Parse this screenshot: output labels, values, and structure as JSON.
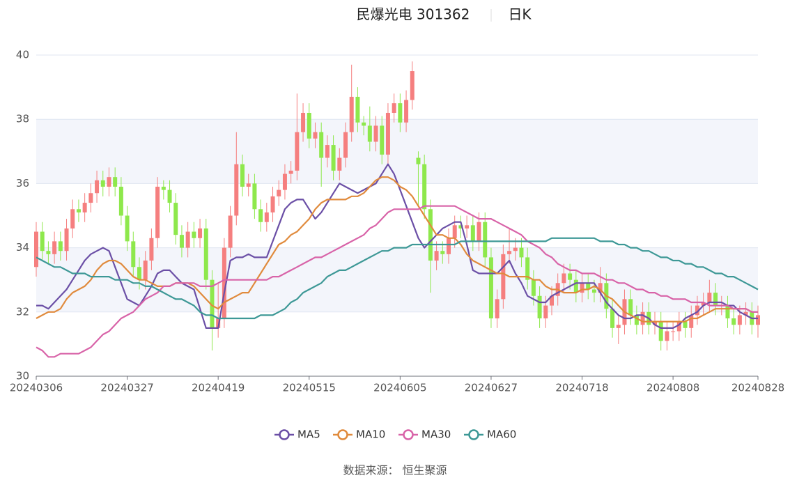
{
  "chart_data": {
    "type": "candlestick",
    "title": "民爆光电 301362",
    "subtitle": "日K",
    "source": "数据来源：  恒生聚源",
    "categories": [
      "20240306",
      null,
      null,
      null,
      null,
      null,
      null,
      null,
      null,
      null,
      null,
      null,
      null,
      null,
      null,
      "20240327",
      null,
      null,
      null,
      null,
      null,
      null,
      null,
      null,
      null,
      null,
      null,
      null,
      null,
      null,
      "20240419",
      null,
      null,
      null,
      null,
      null,
      null,
      null,
      null,
      null,
      null,
      null,
      null,
      null,
      null,
      "20240515",
      null,
      null,
      null,
      null,
      null,
      null,
      null,
      null,
      null,
      null,
      null,
      null,
      null,
      null,
      "20240605",
      null,
      null,
      null,
      null,
      null,
      null,
      null,
      null,
      null,
      null,
      null,
      null,
      null,
      null,
      "20240627",
      null,
      null,
      null,
      null,
      null,
      null,
      null,
      null,
      null,
      null,
      null,
      null,
      null,
      null,
      "20240718",
      null,
      null,
      null,
      null,
      null,
      null,
      null,
      null,
      null,
      null,
      null,
      null,
      null,
      null,
      "20240808",
      null,
      null,
      null,
      null,
      null,
      null,
      null,
      null,
      null,
      null,
      null,
      null,
      null,
      "20240828"
    ],
    "up_color": "#f57f7f",
    "down_color": "#8ee84c",
    "open": [
      33.4,
      34.5,
      33.9,
      33.8,
      34.2,
      33.9,
      34.6,
      35.2,
      35.1,
      35.4,
      35.7,
      36.1,
      35.9,
      36.2,
      35.9,
      35.0,
      34.2,
      33.4,
      33.0,
      33.6,
      34.3,
      35.9,
      35.8,
      35.4,
      34.4,
      34.0,
      34.5,
      34.3,
      34.6,
      33.0,
      31.5,
      31.8,
      34.0,
      35.0,
      36.6,
      35.9,
      36.0,
      35.2,
      34.8,
      35.1,
      35.6,
      35.8,
      36.3,
      36.4,
      37.6,
      38.2,
      37.4,
      37.6,
      36.8,
      37.2,
      36.4,
      36.8,
      37.6,
      38.7,
      37.9,
      37.8,
      37.3,
      37.8,
      36.9,
      38.2,
      38.5,
      37.9,
      38.6,
      36.8,
      36.6,
      35.2,
      33.6,
      33.9,
      33.8,
      34.3,
      34.7,
      34.6,
      34.7,
      34.2,
      34.8,
      33.7,
      31.8,
      32.4,
      33.8,
      33.9,
      34.0,
      33.7,
      33.0,
      32.5,
      31.8,
      32.2,
      32.5,
      32.9,
      33.2,
      33.0,
      32.6,
      32.9,
      32.7,
      32.6,
      32.9,
      32.1,
      31.5,
      31.6,
      32.4,
      31.9,
      31.6,
      32.0,
      31.6,
      31.7,
      31.1,
      31.4,
      31.4,
      31.7,
      31.5,
      31.9,
      32.2,
      32.3,
      32.6,
      32.2,
      32.2,
      31.8,
      31.6,
      31.9,
      32.0,
      31.6
    ],
    "close": [
      34.5,
      33.9,
      33.8,
      34.2,
      33.9,
      34.6,
      35.2,
      35.1,
      35.4,
      35.7,
      36.1,
      35.9,
      36.2,
      35.9,
      35.0,
      34.2,
      33.4,
      33.0,
      33.6,
      34.3,
      35.9,
      35.8,
      35.4,
      34.4,
      34.0,
      34.5,
      34.3,
      34.6,
      33.0,
      31.5,
      31.8,
      34.0,
      35.0,
      36.6,
      35.9,
      36.0,
      35.2,
      34.8,
      35.1,
      35.6,
      35.8,
      36.3,
      36.4,
      37.6,
      38.2,
      37.4,
      37.6,
      36.8,
      37.2,
      36.4,
      36.8,
      37.6,
      38.7,
      37.9,
      37.8,
      37.3,
      37.8,
      36.9,
      38.2,
      38.5,
      37.9,
      38.6,
      39.5,
      36.6,
      35.2,
      33.6,
      33.9,
      33.8,
      34.3,
      34.7,
      34.6,
      34.7,
      34.2,
      34.8,
      33.7,
      31.8,
      32.4,
      33.8,
      33.9,
      34.0,
      33.7,
      33.0,
      32.5,
      31.8,
      32.2,
      32.5,
      32.9,
      33.2,
      33.0,
      32.6,
      32.9,
      32.7,
      32.6,
      32.9,
      32.1,
      31.5,
      31.6,
      32.4,
      31.9,
      31.6,
      32.0,
      31.6,
      31.7,
      31.1,
      31.4,
      31.4,
      31.7,
      31.5,
      31.9,
      32.2,
      32.3,
      32.6,
      32.2,
      32.2,
      31.8,
      31.6,
      31.9,
      32.0,
      31.6,
      31.9
    ],
    "high": [
      34.8,
      34.8,
      34.2,
      34.5,
      34.5,
      34.9,
      35.5,
      35.5,
      35.7,
      36.0,
      36.4,
      36.4,
      36.5,
      36.5,
      36.2,
      35.3,
      34.5,
      33.7,
      33.9,
      34.6,
      36.2,
      36.1,
      36.1,
      35.7,
      34.7,
      34.8,
      34.8,
      34.9,
      34.9,
      33.3,
      32.9,
      34.3,
      35.3,
      37.6,
      36.9,
      36.3,
      36.3,
      35.5,
      35.4,
      35.9,
      36.1,
      36.6,
      36.7,
      38.8,
      38.5,
      38.5,
      37.9,
      37.9,
      37.5,
      37.5,
      37.1,
      37.9,
      39.7,
      39.0,
      38.1,
      38.4,
      38.1,
      38.1,
      38.5,
      38.8,
      38.8,
      38.9,
      39.8,
      37.0,
      36.9,
      35.5,
      34.2,
      34.2,
      34.6,
      35.0,
      35.0,
      35.0,
      35.0,
      35.1,
      35.1,
      34.0,
      32.7,
      34.1,
      34.6,
      34.3,
      34.3,
      34.0,
      33.3,
      32.8,
      32.5,
      32.8,
      33.2,
      33.5,
      33.5,
      33.3,
      33.2,
      33.2,
      33.0,
      33.4,
      33.2,
      32.4,
      31.9,
      32.7,
      32.7,
      32.2,
      32.3,
      32.3,
      32.0,
      32.0,
      31.7,
      31.7,
      32.0,
      32.0,
      32.2,
      32.5,
      32.6,
      33.0,
      32.9,
      32.5,
      32.5,
      32.1,
      32.2,
      32.3,
      32.3,
      32.2
    ],
    "low": [
      33.1,
      33.6,
      33.5,
      33.5,
      33.6,
      33.6,
      34.3,
      34.8,
      34.8,
      35.1,
      35.4,
      35.6,
      35.6,
      35.6,
      34.7,
      33.9,
      33.1,
      32.7,
      32.7,
      33.3,
      34.0,
      35.5,
      35.1,
      34.1,
      33.7,
      33.7,
      34.0,
      34.0,
      32.7,
      30.8,
      31.2,
      31.5,
      33.7,
      34.7,
      35.6,
      35.6,
      34.9,
      34.5,
      34.5,
      34.8,
      35.3,
      35.5,
      36.0,
      36.1,
      37.3,
      37.1,
      37.1,
      35.9,
      36.5,
      36.1,
      36.1,
      36.5,
      37.3,
      37.6,
      37.5,
      37.0,
      37.0,
      36.6,
      36.6,
      37.9,
      37.6,
      37.6,
      38.3,
      35.3,
      34.9,
      32.6,
      33.3,
      33.5,
      33.5,
      34.0,
      34.3,
      34.3,
      33.9,
      33.9,
      33.4,
      31.5,
      31.5,
      32.1,
      33.5,
      33.6,
      33.4,
      32.7,
      32.2,
      31.5,
      31.5,
      31.9,
      32.2,
      32.6,
      32.7,
      32.3,
      32.3,
      32.4,
      32.3,
      32.3,
      31.8,
      31.2,
      31.0,
      31.3,
      31.6,
      31.3,
      31.3,
      31.3,
      31.3,
      30.8,
      30.8,
      31.1,
      31.1,
      31.2,
      31.2,
      31.6,
      31.9,
      32.0,
      31.9,
      31.9,
      31.5,
      31.3,
      31.3,
      31.6,
      31.3,
      31.2
    ],
    "series": [
      {
        "name": "MA5",
        "color": "#6b4fa6",
        "values": [
          32.2,
          32.2,
          32.1,
          32.3,
          32.5,
          32.7,
          33.0,
          33.3,
          33.6,
          33.8,
          33.9,
          34.0,
          33.9,
          33.4,
          32.9,
          32.4,
          32.3,
          32.2,
          32.5,
          32.8,
          33.2,
          33.3,
          33.3,
          33.1,
          32.9,
          32.8,
          32.7,
          32.1,
          31.5,
          31.5,
          31.5,
          32.6,
          33.6,
          33.7,
          33.7,
          33.8,
          33.7,
          33.7,
          33.7,
          34.2,
          34.7,
          35.2,
          35.4,
          35.5,
          35.5,
          35.2,
          34.9,
          35.1,
          35.4,
          35.7,
          36.0,
          35.9,
          35.8,
          35.7,
          35.8,
          35.9,
          36.0,
          36.3,
          36.6,
          36.3,
          35.8,
          35.3,
          34.8,
          34.3,
          34.0,
          34.2,
          34.4,
          34.6,
          34.7,
          34.8,
          34.8,
          34.1,
          33.3,
          33.2,
          33.2,
          33.2,
          33.2,
          33.4,
          33.6,
          33.2,
          32.9,
          32.5,
          32.4,
          32.3,
          32.3,
          32.5,
          32.6,
          32.7,
          32.8,
          32.9,
          32.9,
          32.9,
          32.9,
          32.6,
          32.3,
          32.1,
          31.9,
          31.8,
          31.8,
          31.9,
          31.9,
          31.8,
          31.6,
          31.5,
          31.5,
          31.5,
          31.6,
          31.8,
          31.9,
          32.0,
          32.2,
          32.3,
          32.3,
          32.3,
          32.2,
          32.2,
          32.0,
          31.9,
          31.8,
          31.8
        ]
      },
      {
        "name": "MA10",
        "color": "#e08a3c",
        "values": [
          31.8,
          31.9,
          32.0,
          32.0,
          32.1,
          32.4,
          32.6,
          32.7,
          32.8,
          33.0,
          33.3,
          33.5,
          33.6,
          33.6,
          33.5,
          33.3,
          33.1,
          33.0,
          33.0,
          32.9,
          32.8,
          32.8,
          32.8,
          32.9,
          32.9,
          32.9,
          32.8,
          32.6,
          32.4,
          32.2,
          32.1,
          32.3,
          32.4,
          32.5,
          32.6,
          32.6,
          32.9,
          33.2,
          33.5,
          33.8,
          34.1,
          34.2,
          34.4,
          34.5,
          34.7,
          34.9,
          35.2,
          35.4,
          35.5,
          35.5,
          35.5,
          35.5,
          35.6,
          35.6,
          35.7,
          35.9,
          36.1,
          36.2,
          36.2,
          36.1,
          35.9,
          35.8,
          35.6,
          35.3,
          35.0,
          34.7,
          34.4,
          34.4,
          34.3,
          34.3,
          34.1,
          33.8,
          33.6,
          33.5,
          33.4,
          33.3,
          33.2,
          33.2,
          33.1,
          33.1,
          33.1,
          33.1,
          33.0,
          33.0,
          32.8,
          32.7,
          32.7,
          32.6,
          32.6,
          32.6,
          32.7,
          32.7,
          32.8,
          32.7,
          32.5,
          32.4,
          32.2,
          32.0,
          31.9,
          31.8,
          31.7,
          31.7,
          31.7,
          31.7,
          31.7,
          31.7,
          31.7,
          31.7,
          31.8,
          31.8,
          31.9,
          32.0,
          32.1,
          32.1,
          32.1,
          32.1,
          32.1,
          32.1,
          32.0,
          32.0
        ]
      },
      {
        "name": "MA30",
        "color": "#d863a8",
        "values": [
          30.9,
          30.8,
          30.6,
          30.6,
          30.7,
          30.7,
          30.7,
          30.7,
          30.8,
          30.9,
          31.1,
          31.3,
          31.4,
          31.6,
          31.8,
          31.9,
          32.0,
          32.2,
          32.4,
          32.5,
          32.6,
          32.8,
          32.8,
          32.9,
          32.9,
          32.9,
          32.9,
          32.8,
          32.8,
          32.8,
          32.9,
          33.0,
          33.0,
          33.0,
          33.0,
          33.0,
          33.0,
          33.0,
          33.0,
          33.1,
          33.1,
          33.2,
          33.3,
          33.4,
          33.5,
          33.6,
          33.7,
          33.7,
          33.8,
          33.9,
          34.0,
          34.1,
          34.2,
          34.3,
          34.4,
          34.6,
          34.7,
          34.9,
          35.1,
          35.2,
          35.2,
          35.2,
          35.2,
          35.2,
          35.3,
          35.3,
          35.3,
          35.3,
          35.3,
          35.3,
          35.2,
          35.1,
          35.0,
          34.9,
          34.9,
          34.9,
          34.8,
          34.7,
          34.6,
          34.5,
          34.4,
          34.2,
          34.1,
          34.0,
          33.8,
          33.7,
          33.5,
          33.4,
          33.3,
          33.3,
          33.2,
          33.2,
          33.2,
          33.1,
          33.0,
          33.0,
          32.9,
          32.9,
          32.8,
          32.7,
          32.7,
          32.6,
          32.6,
          32.5,
          32.5,
          32.4,
          32.4,
          32.4,
          32.3,
          32.3,
          32.3,
          32.2,
          32.2,
          32.2,
          32.2,
          32.1,
          32.1,
          32.1,
          32.0,
          32.0
        ]
      },
      {
        "name": "MA60",
        "color": "#3d9896",
        "values": [
          33.7,
          33.6,
          33.5,
          33.4,
          33.4,
          33.3,
          33.2,
          33.2,
          33.2,
          33.1,
          33.1,
          33.1,
          33.1,
          33.0,
          33.0,
          33.0,
          32.9,
          32.9,
          32.8,
          32.8,
          32.7,
          32.6,
          32.5,
          32.4,
          32.4,
          32.3,
          32.2,
          32.0,
          31.9,
          31.9,
          31.8,
          31.8,
          31.8,
          31.8,
          31.8,
          31.8,
          31.8,
          31.9,
          31.9,
          31.9,
          32.0,
          32.1,
          32.3,
          32.4,
          32.6,
          32.7,
          32.8,
          32.9,
          33.1,
          33.2,
          33.3,
          33.3,
          33.4,
          33.5,
          33.6,
          33.7,
          33.8,
          33.9,
          33.9,
          34.0,
          34.0,
          34.0,
          34.1,
          34.1,
          34.1,
          34.1,
          34.1,
          34.1,
          34.1,
          34.1,
          34.2,
          34.2,
          34.2,
          34.2,
          34.2,
          34.2,
          34.2,
          34.2,
          34.2,
          34.2,
          34.2,
          34.2,
          34.2,
          34.2,
          34.2,
          34.3,
          34.3,
          34.3,
          34.3,
          34.3,
          34.3,
          34.3,
          34.3,
          34.2,
          34.2,
          34.2,
          34.1,
          34.1,
          34.0,
          34.0,
          33.9,
          33.9,
          33.8,
          33.7,
          33.7,
          33.6,
          33.6,
          33.5,
          33.5,
          33.4,
          33.4,
          33.3,
          33.2,
          33.2,
          33.1,
          33.1,
          33.0,
          32.9,
          32.8,
          32.7
        ]
      }
    ],
    "ylim": [
      30,
      40
    ],
    "yticks": [
      30,
      32,
      34,
      36,
      38,
      40
    ],
    "grid": true,
    "split_area": true,
    "legend_position": "bottom"
  }
}
